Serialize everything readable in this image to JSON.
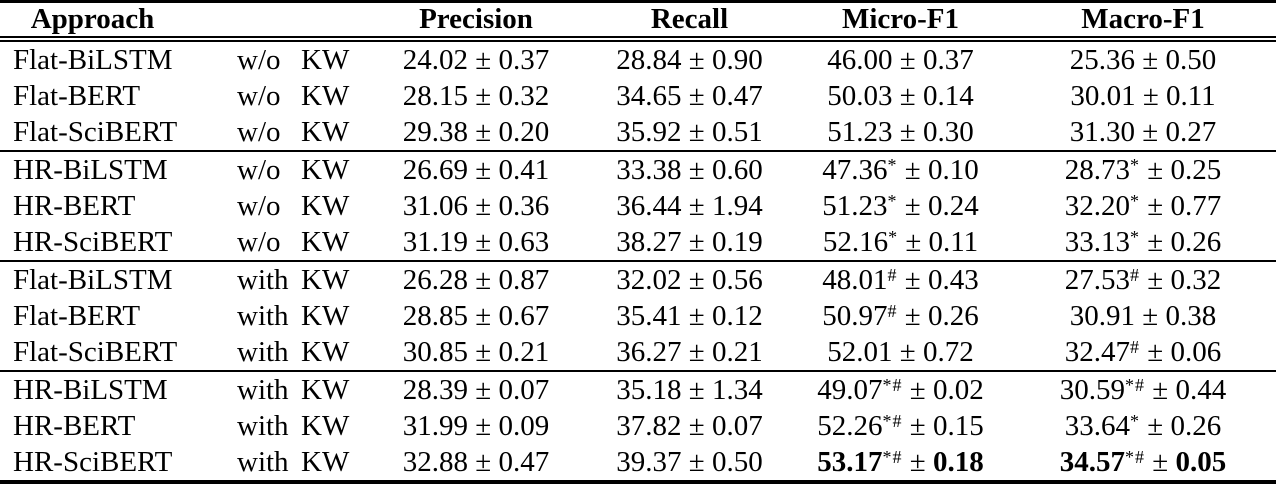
{
  "colors": {
    "text": "#000000",
    "background": "#ffffff",
    "rule": "#000000"
  },
  "table": {
    "pm_symbol": "±",
    "headers": {
      "approach": "Approach",
      "kw": "",
      "precision": "Precision",
      "recall": "Recall",
      "micro_f1": "Micro-F1",
      "macro_f1": "Macro-F1"
    },
    "rows": [
      {
        "approach": "Flat-BiLSTM",
        "kw_prefix": "w/o",
        "kw_word": "KW",
        "group_start": false,
        "precision": {
          "v": "24.02",
          "sup": "",
          "err": "0.37",
          "bold": false
        },
        "recall": {
          "v": "28.84",
          "sup": "",
          "err": "0.90",
          "bold": false
        },
        "micro_f1": {
          "v": "46.00",
          "sup": "",
          "err": "0.37",
          "bold": false
        },
        "macro_f1": {
          "v": "25.36",
          "sup": "",
          "err": "0.50",
          "bold": false
        }
      },
      {
        "approach": "Flat-BERT",
        "kw_prefix": "w/o",
        "kw_word": "KW",
        "group_start": false,
        "precision": {
          "v": "28.15",
          "sup": "",
          "err": "0.32",
          "bold": false
        },
        "recall": {
          "v": "34.65",
          "sup": "",
          "err": "0.47",
          "bold": false
        },
        "micro_f1": {
          "v": "50.03",
          "sup": "",
          "err": "0.14",
          "bold": false
        },
        "macro_f1": {
          "v": "30.01",
          "sup": "",
          "err": "0.11",
          "bold": false
        }
      },
      {
        "approach": "Flat-SciBERT",
        "kw_prefix": "w/o",
        "kw_word": "KW",
        "group_start": false,
        "precision": {
          "v": "29.38",
          "sup": "",
          "err": "0.20",
          "bold": false
        },
        "recall": {
          "v": "35.92",
          "sup": "",
          "err": "0.51",
          "bold": false
        },
        "micro_f1": {
          "v": "51.23",
          "sup": "",
          "err": "0.30",
          "bold": false
        },
        "macro_f1": {
          "v": "31.30",
          "sup": "",
          "err": "0.27",
          "bold": false
        }
      },
      {
        "approach": "HR-BiLSTM",
        "kw_prefix": "w/o",
        "kw_word": "KW",
        "group_start": true,
        "precision": {
          "v": "26.69",
          "sup": "",
          "err": "0.41",
          "bold": false
        },
        "recall": {
          "v": "33.38",
          "sup": "",
          "err": "0.60",
          "bold": false
        },
        "micro_f1": {
          "v": "47.36",
          "sup": "*",
          "err": "0.10",
          "bold": false
        },
        "macro_f1": {
          "v": "28.73",
          "sup": "*",
          "err": "0.25",
          "bold": false
        }
      },
      {
        "approach": "HR-BERT",
        "kw_prefix": "w/o",
        "kw_word": "KW",
        "group_start": false,
        "precision": {
          "v": "31.06",
          "sup": "",
          "err": "0.36",
          "bold": false
        },
        "recall": {
          "v": "36.44",
          "sup": "",
          "err": "1.94",
          "bold": false
        },
        "micro_f1": {
          "v": "51.23",
          "sup": "*",
          "err": "0.24",
          "bold": false
        },
        "macro_f1": {
          "v": "32.20",
          "sup": "*",
          "err": "0.77",
          "bold": false
        }
      },
      {
        "approach": "HR-SciBERT",
        "kw_prefix": "w/o",
        "kw_word": "KW",
        "group_start": false,
        "precision": {
          "v": "31.19",
          "sup": "",
          "err": "0.63",
          "bold": false
        },
        "recall": {
          "v": "38.27",
          "sup": "",
          "err": "0.19",
          "bold": false
        },
        "micro_f1": {
          "v": "52.16",
          "sup": "*",
          "err": "0.11",
          "bold": false
        },
        "macro_f1": {
          "v": "33.13",
          "sup": "*",
          "err": "0.26",
          "bold": false
        }
      },
      {
        "approach": "Flat-BiLSTM",
        "kw_prefix": "with",
        "kw_word": "KW",
        "group_start": true,
        "precision": {
          "v": "26.28",
          "sup": "",
          "err": "0.87",
          "bold": false
        },
        "recall": {
          "v": "32.02",
          "sup": "",
          "err": "0.56",
          "bold": false
        },
        "micro_f1": {
          "v": "48.01",
          "sup": "#",
          "err": "0.43",
          "bold": false
        },
        "macro_f1": {
          "v": "27.53",
          "sup": "#",
          "err": "0.32",
          "bold": false
        }
      },
      {
        "approach": "Flat-BERT",
        "kw_prefix": "with",
        "kw_word": "KW",
        "group_start": false,
        "precision": {
          "v": "28.85",
          "sup": "",
          "err": "0.67",
          "bold": false
        },
        "recall": {
          "v": "35.41",
          "sup": "",
          "err": "0.12",
          "bold": false
        },
        "micro_f1": {
          "v": "50.97",
          "sup": "#",
          "err": "0.26",
          "bold": false
        },
        "macro_f1": {
          "v": "30.91",
          "sup": "",
          "err": "0.38",
          "bold": false
        }
      },
      {
        "approach": "Flat-SciBERT",
        "kw_prefix": "with",
        "kw_word": "KW",
        "group_start": false,
        "precision": {
          "v": "30.85",
          "sup": "",
          "err": "0.21",
          "bold": false
        },
        "recall": {
          "v": "36.27",
          "sup": "",
          "err": "0.21",
          "bold": false
        },
        "micro_f1": {
          "v": "52.01",
          "sup": "",
          "err": "0.72",
          "bold": false
        },
        "macro_f1": {
          "v": "32.47",
          "sup": "#",
          "err": "0.06",
          "bold": false
        }
      },
      {
        "approach": "HR-BiLSTM",
        "kw_prefix": "with",
        "kw_word": "KW",
        "group_start": true,
        "precision": {
          "v": "28.39",
          "sup": "",
          "err": "0.07",
          "bold": false
        },
        "recall": {
          "v": "35.18",
          "sup": "",
          "err": "1.34",
          "bold": false
        },
        "micro_f1": {
          "v": "49.07",
          "sup": "*#",
          "err": "0.02",
          "bold": false
        },
        "macro_f1": {
          "v": "30.59",
          "sup": "*#",
          "err": "0.44",
          "bold": false
        }
      },
      {
        "approach": "HR-BERT",
        "kw_prefix": "with",
        "kw_word": "KW",
        "group_start": false,
        "precision": {
          "v": "31.99",
          "sup": "",
          "err": "0.09",
          "bold": false
        },
        "recall": {
          "v": "37.82",
          "sup": "",
          "err": "0.07",
          "bold": false
        },
        "micro_f1": {
          "v": "52.26",
          "sup": "*#",
          "err": "0.15",
          "bold": false
        },
        "macro_f1": {
          "v": "33.64",
          "sup": "*",
          "err": "0.26",
          "bold": false
        }
      },
      {
        "approach": "HR-SciBERT",
        "kw_prefix": "with",
        "kw_word": "KW",
        "group_start": false,
        "precision": {
          "v": "32.88",
          "sup": "",
          "err": "0.47",
          "bold": false
        },
        "recall": {
          "v": "39.37",
          "sup": "",
          "err": "0.50",
          "bold": false
        },
        "micro_f1": {
          "v": "53.17",
          "sup": "*#",
          "err": "0.18",
          "bold": true
        },
        "macro_f1": {
          "v": "34.57",
          "sup": "*#",
          "err": "0.05",
          "bold": true
        }
      }
    ]
  }
}
